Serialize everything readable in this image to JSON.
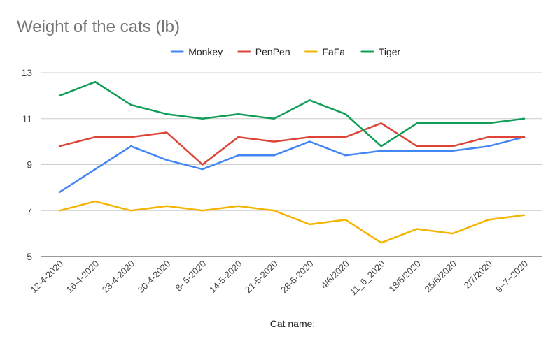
{
  "chart_data": {
    "type": "line",
    "title": "Weight of the cats (lb)",
    "xlabel": "Cat name:",
    "ylabel": "",
    "ylim": [
      5,
      13
    ],
    "yticks": [
      5,
      7,
      9,
      11,
      13
    ],
    "grid": true,
    "legend_position": "top",
    "categories": [
      "12-4-2020",
      "16-4-2020",
      "23-4-2020",
      "30-4-2020",
      "8- 5-2020",
      "14-5-2020",
      "21-5-2020",
      "28-5-2020",
      "4/6/2020",
      "11_6_2020",
      "18/6/2020",
      "25/6/2020",
      "2/7/2020",
      "9~7~2020"
    ],
    "series": [
      {
        "name": "Monkey",
        "color": "#4285f4",
        "values": [
          7.8,
          8.8,
          9.8,
          9.2,
          8.8,
          9.4,
          9.4,
          10.0,
          9.4,
          9.6,
          9.6,
          9.6,
          9.8,
          10.2
        ]
      },
      {
        "name": "PenPen",
        "color": "#db4437",
        "values": [
          9.8,
          10.2,
          10.2,
          10.4,
          9.0,
          10.2,
          10.0,
          10.2,
          10.2,
          10.8,
          9.8,
          9.8,
          10.2,
          10.2
        ]
      },
      {
        "name": "FaFa",
        "color": "#f4b400",
        "values": [
          7.0,
          7.4,
          7.0,
          7.2,
          7.0,
          7.2,
          7.0,
          6.4,
          6.6,
          5.6,
          6.2,
          6.0,
          6.6,
          6.8
        ]
      },
      {
        "name": "Tiger",
        "color": "#0f9d58",
        "values": [
          12.0,
          12.6,
          11.6,
          11.2,
          11.0,
          11.2,
          11.0,
          11.8,
          11.2,
          9.8,
          10.8,
          10.8,
          10.8,
          11.0
        ]
      }
    ]
  }
}
